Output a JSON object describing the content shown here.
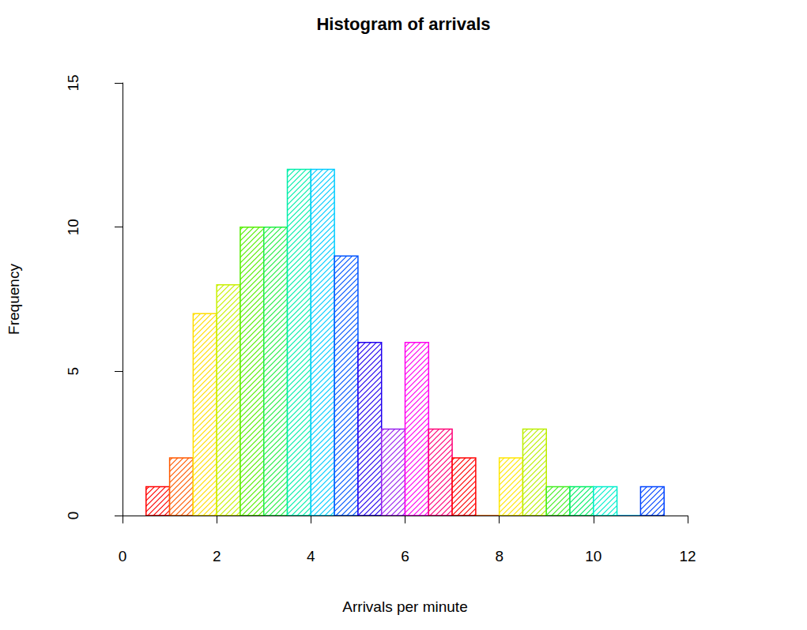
{
  "chart_data": {
    "type": "histogram",
    "title": "Histogram of arrivals",
    "x_label": "Arrivals per minute",
    "y_label": "Frequency",
    "bins": [
      0.5,
      1,
      1.5,
      2,
      2.5,
      3,
      3.5,
      4,
      4.5,
      5,
      5.5,
      6,
      6.5,
      7,
      7.5,
      8,
      8.5,
      9,
      9.5,
      10,
      10.5,
      11,
      11.5
    ],
    "values": [
      1,
      2,
      7,
      8,
      10,
      10,
      12,
      12,
      9,
      6,
      3,
      6,
      3,
      2,
      0,
      2,
      3,
      1,
      1,
      1,
      0,
      1
    ],
    "colors": [
      "#ff0000",
      "#ff5a00",
      "#ffdd00",
      "#c8f000",
      "#55ee00",
      "#22ee44",
      "#00eeaa",
      "#00ccff",
      "#0055ff",
      "#2200ee",
      "#9922ee",
      "#ff00ee",
      "#ff0077",
      "#ff0000",
      "#ff6600",
      "#ffe600",
      "#bbee00",
      "#44ee22",
      "#00ee66",
      "#00eecc",
      "#00aaff",
      "#0044ff"
    ],
    "xlim": [
      0,
      12
    ],
    "xticks": [
      0,
      2,
      4,
      6,
      8,
      10,
      12
    ],
    "ylim": [
      0,
      15
    ],
    "yticks": [
      0,
      5,
      10,
      15
    ],
    "grid": false
  }
}
